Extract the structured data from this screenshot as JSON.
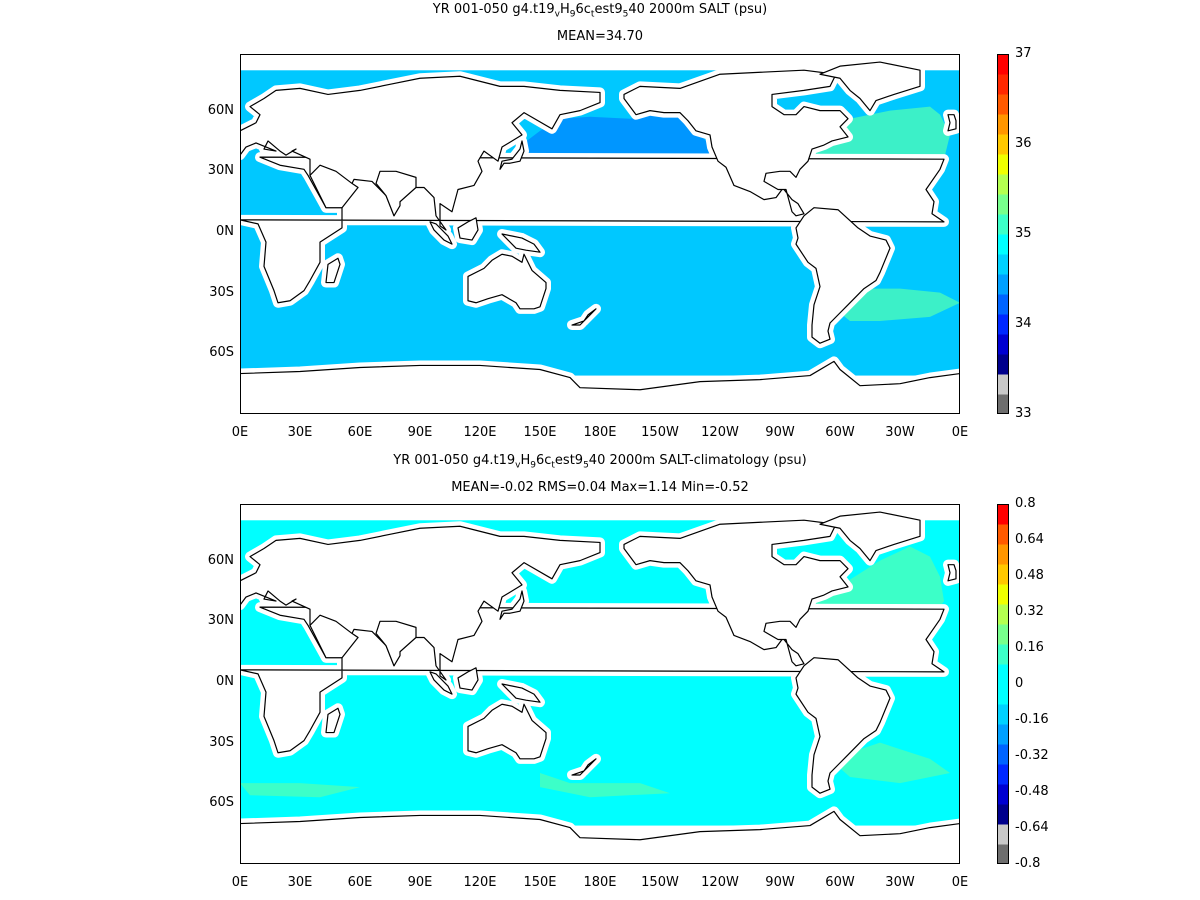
{
  "maps": [
    {
      "title_line1": "YR 001-050 g4.t19vH96ctest9540 2000m SALT (psu)",
      "title_line1_parts": [
        "YR 001-050 g4.t19",
        "v",
        "H",
        "9",
        "6c",
        "t",
        "est9",
        "5",
        "40 2000m SALT (psu)"
      ],
      "title_line2": "MEAN=34.70",
      "xticks": [
        "0E",
        "30E",
        "60E",
        "90E",
        "120E",
        "150E",
        "180E",
        "150W",
        "120W",
        "90W",
        "60W",
        "30W",
        "0E"
      ],
      "yticks": [
        "60N",
        "30N",
        "0N",
        "30S",
        "60S"
      ],
      "colorbar": {
        "labels": [
          "37",
          "36",
          "35",
          "34",
          "33"
        ],
        "range": [
          33,
          37
        ],
        "colors": [
          "#6e6e6e",
          "#c8c8c8",
          "#00008c",
          "#0000d2",
          "#0028ff",
          "#0064ff",
          "#00a0ff",
          "#00d2ff",
          "#00ffff",
          "#3cffc8",
          "#78ff8c",
          "#b4ff50",
          "#f0ff00",
          "#ffc800",
          "#ff9600",
          "#ff5a00",
          "#ff2800",
          "#ff0000"
        ]
      },
      "field_colors": {
        "pacific_main": "#00c8ff",
        "north_pacific": "#0096ff",
        "atlantic": "#3cf0c8",
        "indian": "#00c8ff",
        "southern": "#00c8ff"
      }
    },
    {
      "title_line1": "YR 001-050 g4.t19vH96ctest9540 2000m SALT-climatology (psu)",
      "title_line1_parts": [
        "YR 001-050 g4.t19",
        "v",
        "H",
        "9",
        "6c",
        "t",
        "est9",
        "5",
        "40 2000m SALT-climatology (psu)"
      ],
      "title_line2": "MEAN=-0.02   RMS=0.04   Max=1.14   Min=-0.52",
      "xticks": [
        "0E",
        "30E",
        "60E",
        "90E",
        "120E",
        "150E",
        "180E",
        "150W",
        "120W",
        "90W",
        "60W",
        "30W",
        "0E"
      ],
      "yticks": [
        "60N",
        "30N",
        "0N",
        "30S",
        "60S"
      ],
      "colorbar": {
        "labels": [
          "0.8",
          "0.64",
          "0.48",
          "0.32",
          "0.16",
          "0",
          "-0.16",
          "-0.32",
          "-0.48",
          "-0.64",
          "-0.8"
        ],
        "range": [
          -0.8,
          0.8
        ],
        "colors": [
          "#6e6e6e",
          "#c8c8c8",
          "#00008c",
          "#0000d2",
          "#0028ff",
          "#0064ff",
          "#00a0ff",
          "#00d2ff",
          "#00ffff",
          "#00ffff",
          "#3cffc8",
          "#78ff8c",
          "#b4ff50",
          "#f0ff00",
          "#ffc800",
          "#ff9600",
          "#ff5a00",
          "#ff0000"
        ]
      },
      "field_colors": {
        "pacific_main": "#00ffff",
        "north_pacific": "#00f0f0",
        "atlantic": "#3cffc8",
        "indian": "#00ffff",
        "southern": "#00ffff"
      }
    }
  ]
}
